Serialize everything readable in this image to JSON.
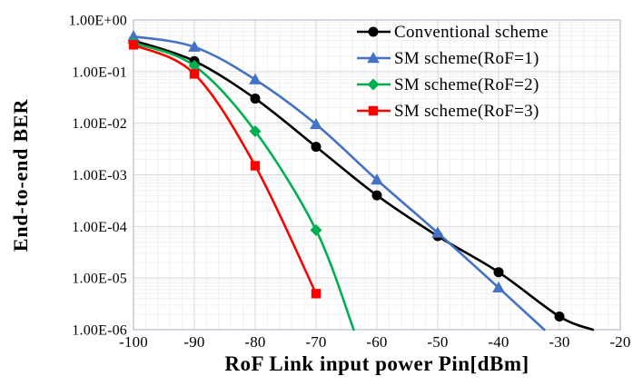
{
  "chart_data": {
    "type": "line",
    "title": "",
    "xlabel": "RoF Link input power Pin[dBm]",
    "ylabel": "End-to-end BER",
    "x_scale": "linear",
    "y_scale": "log",
    "xlim": [
      -100,
      -20
    ],
    "ylim": [
      1e-06,
      1
    ],
    "x_ticks": [
      -100,
      -90,
      -80,
      -70,
      -60,
      -50,
      -40,
      -30,
      -20
    ],
    "x_tick_labels": [
      "-100",
      "-90",
      "-80",
      "-70",
      "-60",
      "-50",
      "-40",
      "-30",
      "-20"
    ],
    "y_tick_values": [
      1,
      0.1,
      0.01,
      0.001,
      0.0001,
      1e-05,
      1e-06
    ],
    "y_tick_labels": [
      "1.00E+00",
      "1.00E-01",
      "1.00E-02",
      "1.00E-03",
      "1.00E-04",
      "1.00E-05",
      "1.00E-06"
    ],
    "grid": "major+minor",
    "minor_x_step_dBm": 2,
    "legend_position": "top-right-inside",
    "colors": {
      "conventional": "#000000",
      "rof1": "#4472C4",
      "rof2": "#00B050",
      "rof3": "#FF0000",
      "grid_major": "#D8D8D8",
      "grid_minor": "#F0F0F0",
      "plot_border": "#B4BCCA"
    },
    "series": [
      {
        "name": "Conventional scheme",
        "color": "#000000",
        "marker": "circle",
        "x": [
          -100,
          -90,
          -80,
          -70,
          -60,
          -50,
          -40,
          -30
        ],
        "y": [
          0.4,
          0.16,
          0.03,
          0.0035,
          0.0004,
          6.5e-05,
          1.3e-05,
          1.8e-06
        ],
        "tail": {
          "x": -24.5,
          "y": 1e-06
        }
      },
      {
        "name": "SM scheme(RoF=1)",
        "color": "#4472C4",
        "marker": "triangle",
        "x": [
          -100,
          -90,
          -80,
          -70,
          -60,
          -50,
          -40
        ],
        "y": [
          0.48,
          0.3,
          0.07,
          0.0095,
          0.0008,
          7.5e-05,
          6.5e-06
        ],
        "tail": {
          "x": -32.5,
          "y": 1e-06
        }
      },
      {
        "name": "SM scheme(RoF=2)",
        "color": "#00B050",
        "marker": "diamond",
        "x": [
          -100,
          -90,
          -80,
          -70
        ],
        "y": [
          0.36,
          0.13,
          0.007,
          8.5e-05
        ],
        "tail": {
          "x": -63.8,
          "y": 1e-06
        }
      },
      {
        "name": "SM scheme(RoF=3)",
        "color": "#FF0000",
        "marker": "square",
        "x": [
          -100,
          -90,
          -80,
          -70
        ],
        "y": [
          0.33,
          0.09,
          0.0015,
          5e-06
        ],
        "tail": null
      }
    ]
  }
}
